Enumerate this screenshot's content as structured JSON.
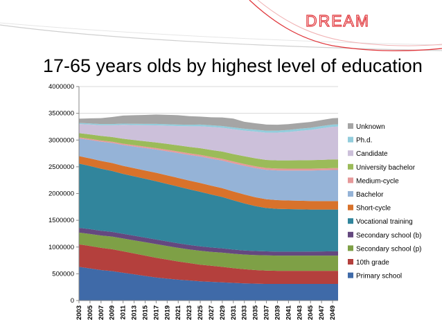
{
  "slide": {
    "title": "17-65 years olds by highest level of education",
    "logo_text": "DREAM"
  },
  "colors": {
    "accent": "#e0353a",
    "wave": "#cfcfcf"
  },
  "chart_data": {
    "type": "area",
    "stacked": true,
    "title": "17-65 years olds by highest level of education",
    "xlabel": "",
    "ylabel": "",
    "ylim": [
      0,
      4000000
    ],
    "yticks": [
      0,
      500000,
      1000000,
      1500000,
      2000000,
      2500000,
      3000000,
      3500000,
      4000000
    ],
    "ytick_labels": [
      "0",
      "500000",
      "1000000",
      "1500000",
      "2000000",
      "2500000",
      "3000000",
      "3500000",
      "4000000"
    ],
    "x": [
      2003,
      2005,
      2007,
      2009,
      2011,
      2013,
      2015,
      2017,
      2019,
      2021,
      2023,
      2025,
      2027,
      2029,
      2031,
      2033,
      2035,
      2037,
      2039,
      2041,
      2043,
      2045,
      2047,
      2049,
      2050
    ],
    "xtick_labels": [
      "2003",
      "2005",
      "2007",
      "2009",
      "2011",
      "2013",
      "2015",
      "2017",
      "2019",
      "2021",
      "2023",
      "2025",
      "2027",
      "2029",
      "2031",
      "2033",
      "2035",
      "2037",
      "2039",
      "2041",
      "2043",
      "2045",
      "2047",
      "2049"
    ],
    "grid": true,
    "legend_position": "right",
    "series": [
      {
        "name": "Primary school",
        "color": "#3f6aa8",
        "values": [
          630000,
          600000,
          570000,
          550000,
          520000,
          490000,
          460000,
          430000,
          410000,
          390000,
          375000,
          360000,
          350000,
          340000,
          330000,
          320000,
          315000,
          310000,
          310000,
          310000,
          310000,
          310000,
          310000,
          310000,
          310000
        ]
      },
      {
        "name": "10th grade",
        "color": "#b4403d",
        "values": [
          420000,
          420000,
          415000,
          410000,
          400000,
          390000,
          380000,
          370000,
          355000,
          340000,
          325000,
          310000,
          300000,
          290000,
          275000,
          265000,
          255000,
          250000,
          245000,
          245000,
          245000,
          245000,
          245000,
          245000,
          245000
        ]
      },
      {
        "name": "Secondary school (p)",
        "color": "#7ea046",
        "values": [
          220000,
          225000,
          230000,
          235000,
          240000,
          245000,
          250000,
          255000,
          255000,
          255000,
          255000,
          260000,
          260000,
          265000,
          270000,
          275000,
          280000,
          285000,
          285000,
          285000,
          285000,
          285000,
          285000,
          285000,
          285000
        ]
      },
      {
        "name": "Secondary school (b)",
        "color": "#64487f",
        "values": [
          90000,
          90000,
          90000,
          88000,
          88000,
          87000,
          86000,
          85000,
          85000,
          85000,
          84000,
          83000,
          82000,
          80000,
          78000,
          76000,
          75000,
          74000,
          74000,
          74000,
          75000,
          76000,
          78000,
          80000,
          80000
        ]
      },
      {
        "name": "Vocational training",
        "color": "#31859c",
        "values": [
          1200000,
          1180000,
          1160000,
          1140000,
          1120000,
          1110000,
          1100000,
          1090000,
          1075000,
          1060000,
          1040000,
          1020000,
          990000,
          960000,
          920000,
          880000,
          840000,
          810000,
          800000,
          795000,
          790000,
          785000,
          782000,
          780000,
          780000
        ]
      },
      {
        "name": "Short-cycle",
        "color": "#d8722b",
        "values": [
          140000,
          142000,
          145000,
          148000,
          150000,
          152000,
          155000,
          158000,
          160000,
          162000,
          163000,
          164000,
          165000,
          166000,
          166000,
          166000,
          165000,
          164000,
          163000,
          162000,
          161000,
          160000,
          160000,
          160000,
          160000
        ]
      },
      {
        "name": "Bachelor",
        "color": "#95b3d7",
        "values": [
          330000,
          345000,
          360000,
          375000,
          390000,
          405000,
          420000,
          435000,
          450000,
          465000,
          480000,
          495000,
          505000,
          515000,
          525000,
          535000,
          545000,
          550000,
          555000,
          560000,
          565000,
          570000,
          575000,
          580000,
          580000
        ]
      },
      {
        "name": "Medium-cycle",
        "color": "#e6999a",
        "values": [
          20000,
          21000,
          22000,
          23000,
          24000,
          25000,
          26000,
          27000,
          28000,
          29000,
          30000,
          31000,
          32000,
          33000,
          34000,
          35000,
          35000,
          35000,
          35000,
          35000,
          35000,
          35000,
          35000,
          35000,
          35000
        ]
      },
      {
        "name": "University bachelor",
        "color": "#9bbb59",
        "values": [
          80000,
          82000,
          85000,
          88000,
          92000,
          96000,
          100000,
          105000,
          110000,
          115000,
          120000,
          125000,
          130000,
          135000,
          140000,
          145000,
          148000,
          150000,
          152000,
          154000,
          156000,
          158000,
          160000,
          162000,
          162000
        ]
      },
      {
        "name": "Candidate",
        "color": "#ccc0da",
        "values": [
          170000,
          185000,
          200000,
          220000,
          260000,
          280000,
          300000,
          320000,
          340000,
          360000,
          385000,
          410000,
          430000,
          445000,
          465000,
          480000,
          500000,
          510000,
          520000,
          530000,
          550000,
          565000,
          590000,
          610000,
          615000
        ]
      },
      {
        "name": "Ph.d.",
        "color": "#92cddc",
        "values": [
          20000,
          21000,
          22000,
          23000,
          24000,
          25000,
          26000,
          27000,
          28000,
          29000,
          30000,
          31000,
          32000,
          33000,
          34000,
          35000,
          36000,
          37000,
          38000,
          39000,
          40000,
          41000,
          42000,
          43000,
          43000
        ]
      },
      {
        "name": "Unknown",
        "color": "#a5a5a5",
        "values": [
          80000,
          95000,
          110000,
          130000,
          150000,
          160000,
          167000,
          175000,
          175000,
          175000,
          160000,
          150000,
          150000,
          160000,
          165000,
          130000,
          120000,
          115000,
          110000,
          108000,
          107000,
          108000,
          112000,
          117000,
          118000
        ]
      }
    ]
  }
}
